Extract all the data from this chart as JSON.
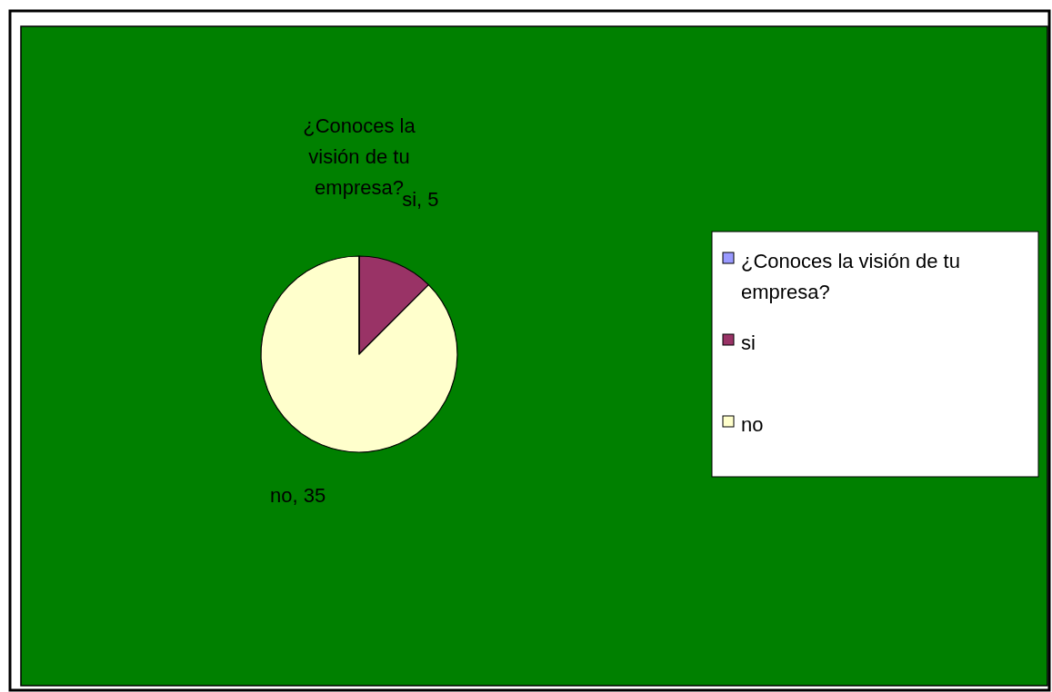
{
  "chart_data": {
    "type": "pie",
    "categories": [
      "¿Conoces la visión de tu empresa?",
      "si",
      "no"
    ],
    "values": [
      0,
      5,
      35
    ],
    "colors": [
      "#9999ff",
      "#993366",
      "#ffffcc"
    ],
    "value_labels": [
      "¿Conoces la visión de tu empresa?",
      "si, 5",
      "no, 35"
    ],
    "legend": "right"
  }
}
